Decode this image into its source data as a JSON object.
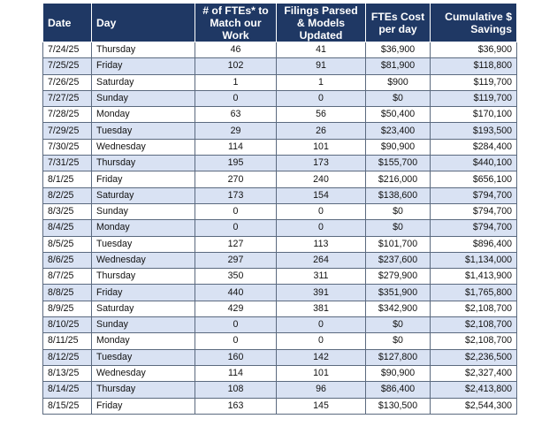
{
  "table": {
    "headers": {
      "date": "Date",
      "day": "Day",
      "ftes": "# of FTEs* to Match our Work",
      "filings": "Filings Parsed & Models Updated",
      "cost": "FTEs Cost per day",
      "cumulative": "Cumulative $ Savings"
    },
    "rows": [
      {
        "date": "7/24/25",
        "day": "Thursday",
        "ftes": "46",
        "filings": "41",
        "cost": "$36,900",
        "cumulative": "$36,900"
      },
      {
        "date": "7/25/25",
        "day": "Friday",
        "ftes": "102",
        "filings": "91",
        "cost": "$81,900",
        "cumulative": "$118,800"
      },
      {
        "date": "7/26/25",
        "day": "Saturday",
        "ftes": "1",
        "filings": "1",
        "cost": "$900",
        "cumulative": "$119,700"
      },
      {
        "date": "7/27/25",
        "day": "Sunday",
        "ftes": "0",
        "filings": "0",
        "cost": "$0",
        "cumulative": "$119,700"
      },
      {
        "date": "7/28/25",
        "day": "Monday",
        "ftes": "63",
        "filings": "56",
        "cost": "$50,400",
        "cumulative": "$170,100"
      },
      {
        "date": "7/29/25",
        "day": "Tuesday",
        "ftes": "29",
        "filings": "26",
        "cost": "$23,400",
        "cumulative": "$193,500"
      },
      {
        "date": "7/30/25",
        "day": "Wednesday",
        "ftes": "114",
        "filings": "101",
        "cost": "$90,900",
        "cumulative": "$284,400"
      },
      {
        "date": "7/31/25",
        "day": "Thursday",
        "ftes": "195",
        "filings": "173",
        "cost": "$155,700",
        "cumulative": "$440,100"
      },
      {
        "date": "8/1/25",
        "day": "Friday",
        "ftes": "270",
        "filings": "240",
        "cost": "$216,000",
        "cumulative": "$656,100"
      },
      {
        "date": "8/2/25",
        "day": "Saturday",
        "ftes": "173",
        "filings": "154",
        "cost": "$138,600",
        "cumulative": "$794,700"
      },
      {
        "date": "8/3/25",
        "day": "Sunday",
        "ftes": "0",
        "filings": "0",
        "cost": "$0",
        "cumulative": "$794,700"
      },
      {
        "date": "8/4/25",
        "day": "Monday",
        "ftes": "0",
        "filings": "0",
        "cost": "$0",
        "cumulative": "$794,700"
      },
      {
        "date": "8/5/25",
        "day": "Tuesday",
        "ftes": "127",
        "filings": "113",
        "cost": "$101,700",
        "cumulative": "$896,400"
      },
      {
        "date": "8/6/25",
        "day": "Wednesday",
        "ftes": "297",
        "filings": "264",
        "cost": "$237,600",
        "cumulative": "$1,134,000"
      },
      {
        "date": "8/7/25",
        "day": "Thursday",
        "ftes": "350",
        "filings": "311",
        "cost": "$279,900",
        "cumulative": "$1,413,900"
      },
      {
        "date": "8/8/25",
        "day": "Friday",
        "ftes": "440",
        "filings": "391",
        "cost": "$351,900",
        "cumulative": "$1,765,800"
      },
      {
        "date": "8/9/25",
        "day": "Saturday",
        "ftes": "429",
        "filings": "381",
        "cost": "$342,900",
        "cumulative": "$2,108,700"
      },
      {
        "date": "8/10/25",
        "day": "Sunday",
        "ftes": "0",
        "filings": "0",
        "cost": "$0",
        "cumulative": "$2,108,700"
      },
      {
        "date": "8/11/25",
        "day": "Monday",
        "ftes": "0",
        "filings": "0",
        "cost": "$0",
        "cumulative": "$2,108,700"
      },
      {
        "date": "8/12/25",
        "day": "Tuesday",
        "ftes": "160",
        "filings": "142",
        "cost": "$127,800",
        "cumulative": "$2,236,500"
      },
      {
        "date": "8/13/25",
        "day": "Wednesday",
        "ftes": "114",
        "filings": "101",
        "cost": "$90,900",
        "cumulative": "$2,327,400"
      },
      {
        "date": "8/14/25",
        "day": "Thursday",
        "ftes": "108",
        "filings": "96",
        "cost": "$86,400",
        "cumulative": "$2,413,800"
      },
      {
        "date": "8/15/25",
        "day": "Friday",
        "ftes": "163",
        "filings": "145",
        "cost": "$130,500",
        "cumulative": "$2,544,300"
      }
    ]
  },
  "colors": {
    "header_bg": "#1f3864",
    "header_text": "#ffffff",
    "stripe_row": "#d9e2f3",
    "plain_row": "#ffffff",
    "grid_line": "#5b6a7f"
  }
}
